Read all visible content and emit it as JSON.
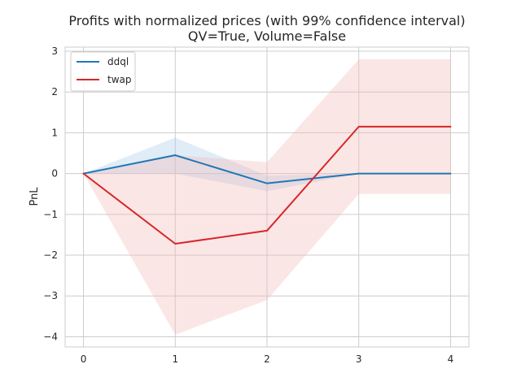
{
  "chart_data": {
    "type": "line",
    "title": "Profits with normalized prices (with 99% confidence interval)",
    "subtitle": "QV=True, Volume=False",
    "xlabel": "",
    "ylabel": "PnL",
    "x": [
      0,
      1,
      2,
      3,
      4
    ],
    "xlim": [
      -0.2,
      4.2
    ],
    "ylim": [
      -4.25,
      3.1
    ],
    "xticks": [
      0,
      1,
      2,
      3,
      4
    ],
    "yticks": [
      -4,
      -3,
      -2,
      -1,
      0,
      1,
      2,
      3
    ],
    "grid": true,
    "legend_position": "top-left",
    "series": [
      {
        "name": "ddql",
        "color": "#1f77b4",
        "band_color": "#a6c8e6",
        "values": [
          0,
          0.45,
          -0.24,
          0,
          0
        ],
        "ci_lower": [
          0,
          0.0,
          -0.43,
          0,
          0
        ],
        "ci_upper": [
          0,
          0.88,
          -0.05,
          0,
          0
        ]
      },
      {
        "name": "twap",
        "color": "#d62728",
        "band_color": "#f4b6b6",
        "values": [
          0,
          -1.72,
          -1.4,
          1.15,
          1.15
        ],
        "ci_lower": [
          0,
          -3.95,
          -3.1,
          -0.5,
          -0.5
        ],
        "ci_upper": [
          0,
          0.45,
          0.28,
          2.8,
          2.8
        ]
      }
    ]
  }
}
